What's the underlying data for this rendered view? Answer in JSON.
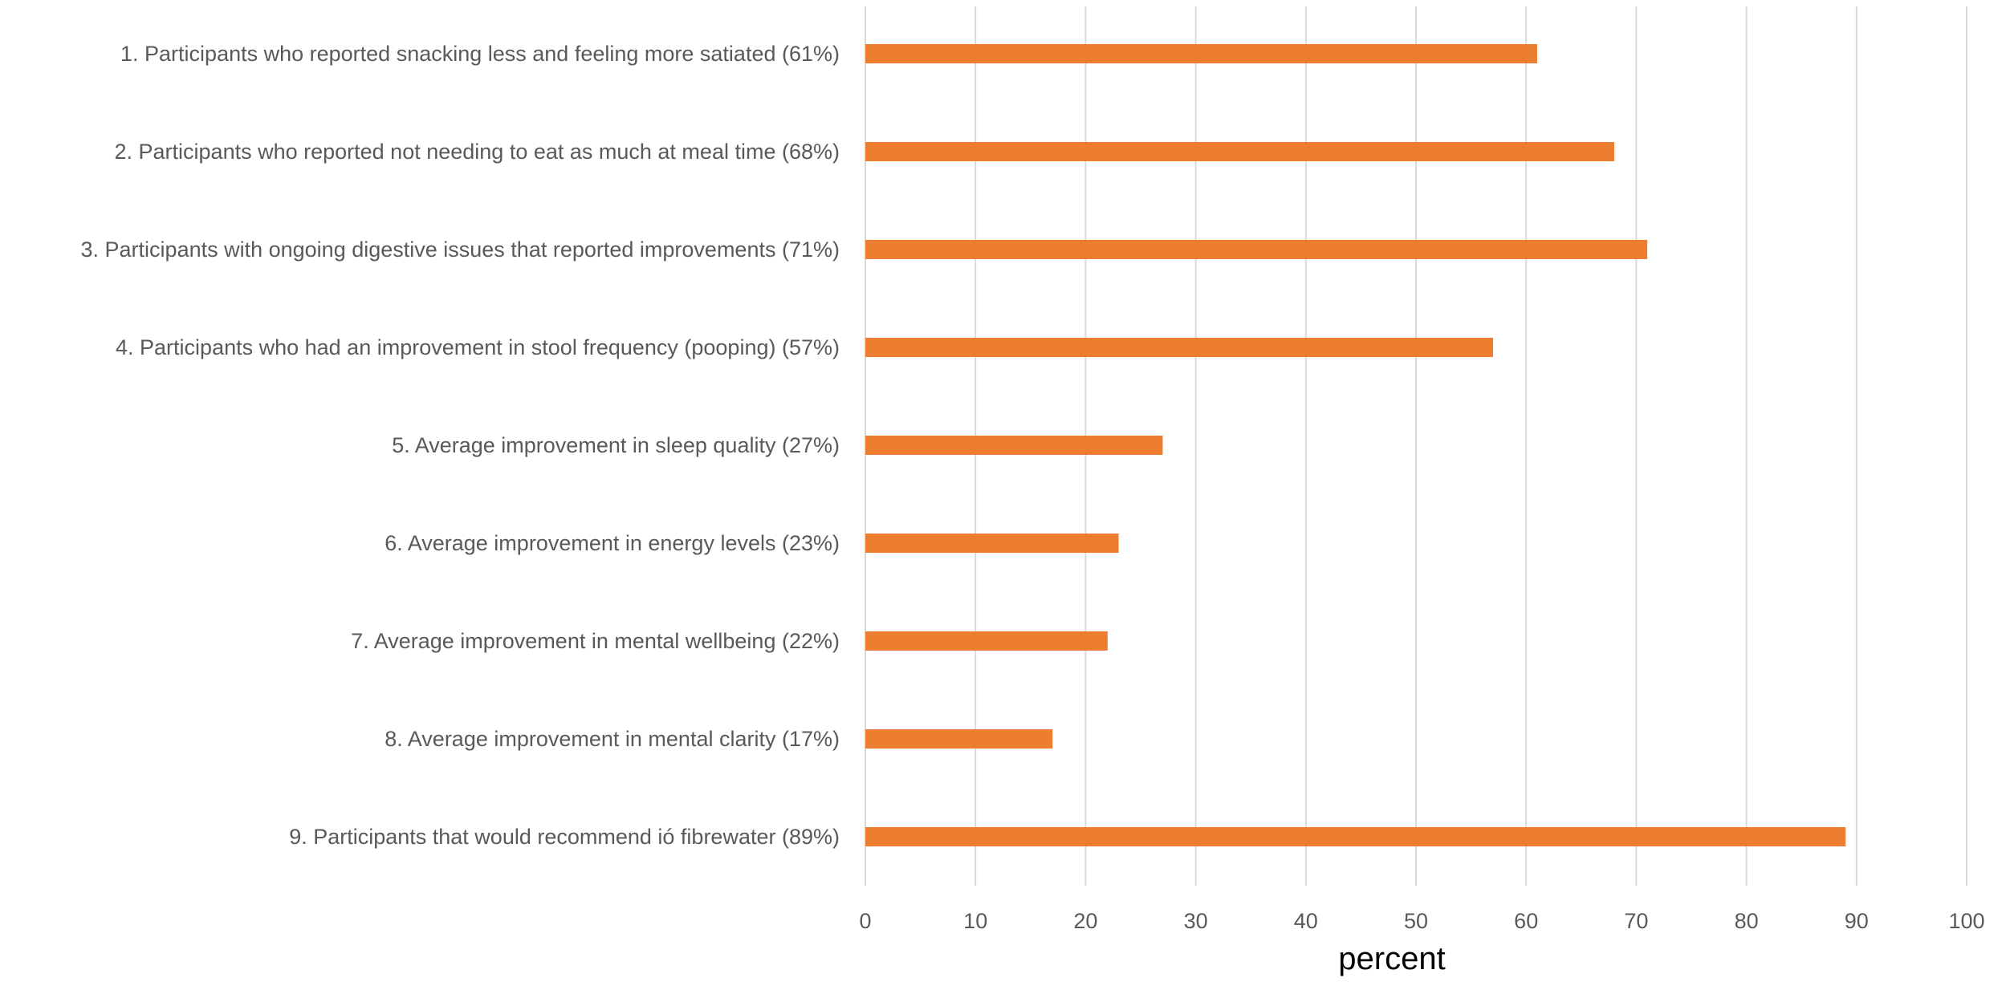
{
  "chart_data": {
    "type": "bar",
    "orientation": "horizontal",
    "categories": [
      "1. Participants who reported snacking less and feeling more satiated (61%)",
      "2. Participants who reported not needing to eat as much at meal time (68%)",
      "3. Participants with ongoing digestive issues that reported improvements (71%)",
      "4. Participants who had an improvement in stool frequency (pooping) (57%)",
      "5. Average improvement in sleep quality (27%)",
      "6. Average improvement in energy levels (23%)",
      "7. Average improvement in mental wellbeing (22%)",
      "8. Average improvement in mental clarity (17%)",
      "9. Participants that would recommend ió fibrewater (89%)"
    ],
    "values": [
      61,
      68,
      71,
      57,
      27,
      23,
      22,
      17,
      89
    ],
    "xlabel": "percent",
    "ylabel": "",
    "xlim": [
      0,
      100
    ],
    "xticks": [
      "0",
      "10",
      "20",
      "30",
      "40",
      "50",
      "60",
      "70",
      "80",
      "90",
      "100"
    ],
    "grid": true,
    "legend": "none",
    "colors": {
      "bar": "#ED7D31"
    }
  }
}
